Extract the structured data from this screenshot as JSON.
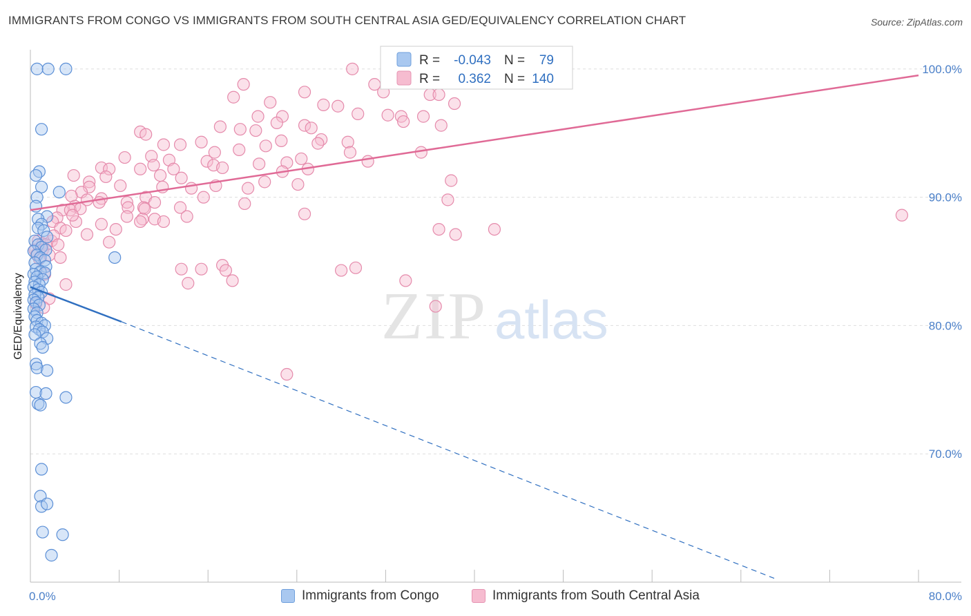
{
  "title": "IMMIGRANTS FROM CONGO VS IMMIGRANTS FROM SOUTH CENTRAL ASIA GED/EQUIVALENCY CORRELATION CHART",
  "source": "Source: ZipAtlas.com",
  "watermark": {
    "zip": "ZIP",
    "atlas": "atlas"
  },
  "colors": {
    "blue": "#2f6fc0",
    "blue_fill": "#a9c8f0",
    "pink": "#e06a96",
    "pink_fill": "#f6bcd0",
    "grid": "#dddddd"
  },
  "chart_data": {
    "type": "scatter",
    "xlabel": "",
    "ylabel": "GED/Equivalency",
    "xlim": [
      0,
      80
    ],
    "ylim": [
      60,
      101.5
    ],
    "x_tick_labels": [
      "0.0%",
      "80.0%"
    ],
    "y_ticks": [
      {
        "value": 100,
        "label": "100.0%"
      },
      {
        "value": 90,
        "label": "90.0%"
      },
      {
        "value": 80,
        "label": "80.0%"
      },
      {
        "value": 70,
        "label": "70.0%"
      }
    ],
    "legend": [
      {
        "series": "Immigrants from Congo",
        "r_label": "R =",
        "r": "-0.043",
        "n_label": "N =",
        "n": "79"
      },
      {
        "series": "Immigrants from South Central Asia",
        "r_label": "R =",
        "r": "0.362",
        "n_label": "N =",
        "n": "140"
      }
    ],
    "series": [
      {
        "name": "Immigrants from Congo",
        "color": "#2f6fc0",
        "trend": {
          "x0": 0,
          "y0": 83.0,
          "x1": 8.2,
          "y1": 80.3,
          "dash_x1": 67,
          "dash_y1": 60.3
        },
        "points": [
          [
            0.6,
            100
          ],
          [
            1.6,
            100
          ],
          [
            3.2,
            100
          ],
          [
            1.0,
            95.3
          ],
          [
            0.8,
            92.0
          ],
          [
            0.5,
            91.7
          ],
          [
            1.0,
            90.8
          ],
          [
            2.6,
            90.4
          ],
          [
            0.6,
            90.0
          ],
          [
            0.5,
            89.3
          ],
          [
            1.5,
            88.5
          ],
          [
            0.7,
            88.3
          ],
          [
            1.0,
            87.9
          ],
          [
            0.7,
            87.6
          ],
          [
            1.2,
            87.4
          ],
          [
            1.5,
            86.9
          ],
          [
            0.4,
            86.6
          ],
          [
            0.7,
            86.3
          ],
          [
            1.0,
            86.1
          ],
          [
            1.4,
            85.9
          ],
          [
            0.3,
            85.8
          ],
          [
            0.6,
            85.5
          ],
          [
            0.9,
            85.3
          ],
          [
            1.3,
            85.1
          ],
          [
            0.4,
            84.9
          ],
          [
            1.4,
            84.6
          ],
          [
            0.5,
            84.4
          ],
          [
            0.9,
            84.2
          ],
          [
            1.3,
            84.1
          ],
          [
            0.3,
            84.0
          ],
          [
            0.6,
            83.8
          ],
          [
            1.1,
            83.6
          ],
          [
            0.4,
            83.4
          ],
          [
            0.8,
            83.2
          ],
          [
            0.3,
            83.0
          ],
          [
            0.7,
            82.8
          ],
          [
            1.0,
            82.6
          ],
          [
            0.4,
            82.4
          ],
          [
            0.7,
            82.2
          ],
          [
            0.3,
            82.0
          ],
          [
            0.5,
            81.8
          ],
          [
            0.8,
            81.6
          ],
          [
            0.3,
            81.3
          ],
          [
            0.6,
            81.0
          ],
          [
            0.4,
            80.7
          ],
          [
            0.6,
            80.4
          ],
          [
            1.0,
            80.2
          ],
          [
            1.3,
            80.0
          ],
          [
            0.5,
            79.9
          ],
          [
            0.8,
            79.7
          ],
          [
            1.1,
            79.5
          ],
          [
            0.4,
            79.3
          ],
          [
            1.5,
            79.0
          ],
          [
            0.9,
            78.6
          ],
          [
            1.1,
            78.3
          ],
          [
            0.5,
            77.0
          ],
          [
            0.6,
            76.7
          ],
          [
            1.5,
            76.5
          ],
          [
            0.5,
            74.8
          ],
          [
            1.4,
            74.7
          ],
          [
            3.2,
            74.4
          ],
          [
            0.7,
            73.9
          ],
          [
            0.9,
            73.8
          ],
          [
            7.6,
            85.3
          ],
          [
            1.0,
            68.8
          ],
          [
            0.9,
            66.7
          ],
          [
            1.0,
            65.9
          ],
          [
            1.5,
            66.1
          ],
          [
            1.1,
            63.9
          ],
          [
            2.9,
            63.7
          ],
          [
            1.9,
            62.1
          ]
        ]
      },
      {
        "name": "Immigrants from South Central Asia",
        "color": "#e06a96",
        "trend": {
          "x0": 0,
          "y0": 89.0,
          "x1": 80,
          "y1": 99.5
        },
        "points": [
          [
            29.0,
            100
          ],
          [
            31.0,
            98.8
          ],
          [
            31.8,
            98.2
          ],
          [
            36.0,
            98.0
          ],
          [
            36.8,
            98.0
          ],
          [
            38.2,
            97.3
          ],
          [
            19.2,
            98.8
          ],
          [
            24.7,
            98.2
          ],
          [
            18.3,
            97.8
          ],
          [
            21.6,
            97.4
          ],
          [
            26.4,
            97.2
          ],
          [
            27.7,
            97.1
          ],
          [
            20.5,
            96.3
          ],
          [
            22.7,
            96.3
          ],
          [
            29.5,
            96.5
          ],
          [
            32.2,
            96.4
          ],
          [
            33.4,
            96.3
          ],
          [
            35.4,
            96.3
          ],
          [
            33.6,
            95.9
          ],
          [
            22.2,
            95.8
          ],
          [
            37.0,
            95.6
          ],
          [
            24.7,
            95.6
          ],
          [
            25.3,
            95.4
          ],
          [
            17.1,
            95.5
          ],
          [
            18.9,
            95.3
          ],
          [
            20.3,
            95.2
          ],
          [
            9.9,
            95.1
          ],
          [
            10.4,
            94.9
          ],
          [
            26.2,
            94.5
          ],
          [
            22.6,
            94.4
          ],
          [
            12.0,
            94.1
          ],
          [
            15.4,
            94.3
          ],
          [
            28.6,
            94.3
          ],
          [
            25.9,
            94.2
          ],
          [
            21.2,
            94.0
          ],
          [
            13.5,
            94.1
          ],
          [
            18.8,
            93.7
          ],
          [
            28.8,
            93.5
          ],
          [
            16.6,
            93.5
          ],
          [
            35.2,
            93.5
          ],
          [
            8.5,
            93.1
          ],
          [
            10.9,
            93.2
          ],
          [
            12.5,
            92.9
          ],
          [
            24.4,
            93.0
          ],
          [
            15.9,
            92.8
          ],
          [
            23.1,
            92.7
          ],
          [
            16.5,
            92.5
          ],
          [
            20.6,
            92.6
          ],
          [
            11.1,
            92.5
          ],
          [
            30.4,
            92.8
          ],
          [
            6.4,
            92.3
          ],
          [
            9.9,
            92.2
          ],
          [
            12.9,
            92.2
          ],
          [
            7.1,
            92.2
          ],
          [
            17.3,
            92.3
          ],
          [
            25.0,
            92.2
          ],
          [
            22.7,
            92.0
          ],
          [
            11.7,
            91.7
          ],
          [
            3.9,
            91.7
          ],
          [
            6.8,
            91.6
          ],
          [
            13.6,
            91.5
          ],
          [
            37.9,
            91.3
          ],
          [
            5.3,
            91.2
          ],
          [
            21.1,
            91.2
          ],
          [
            16.7,
            90.9
          ],
          [
            8.1,
            90.9
          ],
          [
            11.9,
            90.8
          ],
          [
            24.1,
            91.0
          ],
          [
            5.3,
            90.8
          ],
          [
            19.6,
            90.7
          ],
          [
            14.5,
            90.7
          ],
          [
            4.6,
            90.4
          ],
          [
            3.7,
            90.1
          ],
          [
            10.4,
            90.0
          ],
          [
            15.6,
            90.0
          ],
          [
            6.4,
            89.9
          ],
          [
            5.1,
            89.8
          ],
          [
            6.2,
            89.6
          ],
          [
            8.7,
            89.6
          ],
          [
            11.2,
            89.6
          ],
          [
            8.8,
            89.2
          ],
          [
            4.0,
            89.3
          ],
          [
            10.2,
            89.2
          ],
          [
            13.5,
            89.2
          ],
          [
            2.9,
            89.0
          ],
          [
            3.6,
            89.0
          ],
          [
            4.5,
            89.1
          ],
          [
            37.6,
            89.8
          ],
          [
            19.3,
            89.5
          ],
          [
            10.3,
            89.1
          ],
          [
            8.7,
            88.5
          ],
          [
            10.1,
            88.3
          ],
          [
            11.2,
            88.3
          ],
          [
            12.0,
            88.1
          ],
          [
            9.9,
            88.1
          ],
          [
            4.1,
            88.1
          ],
          [
            2.4,
            88.4
          ],
          [
            3.8,
            88.6
          ],
          [
            2.0,
            88.1
          ],
          [
            24.7,
            88.7
          ],
          [
            78.5,
            88.6
          ],
          [
            6.4,
            87.9
          ],
          [
            7.7,
            87.5
          ],
          [
            14.1,
            88.5
          ],
          [
            2.7,
            87.6
          ],
          [
            3.2,
            87.4
          ],
          [
            36.8,
            87.5
          ],
          [
            38.3,
            87.1
          ],
          [
            41.8,
            87.5
          ],
          [
            5.1,
            87.1
          ],
          [
            0.7,
            86.6
          ],
          [
            1.1,
            86.4
          ],
          [
            1.9,
            86.6
          ],
          [
            2.1,
            87.0
          ],
          [
            1.4,
            86.3
          ],
          [
            0.4,
            85.9
          ],
          [
            7.1,
            86.5
          ],
          [
            2.5,
            86.3
          ],
          [
            1.1,
            85.9
          ],
          [
            1.7,
            85.5
          ],
          [
            2.7,
            85.3
          ],
          [
            0.8,
            85.2
          ],
          [
            3.2,
            83.2
          ],
          [
            15.4,
            84.4
          ],
          [
            17.3,
            84.7
          ],
          [
            17.6,
            84.3
          ],
          [
            13.6,
            84.4
          ],
          [
            18.2,
            83.5
          ],
          [
            14.2,
            83.3
          ],
          [
            29.3,
            84.5
          ],
          [
            28.0,
            84.3
          ],
          [
            33.8,
            83.5
          ],
          [
            36.5,
            81.5
          ],
          [
            23.1,
            76.2
          ],
          [
            1.3,
            84.0
          ],
          [
            1.7,
            82.1
          ],
          [
            0.5,
            81.7
          ],
          [
            1.2,
            81.4
          ],
          [
            0.6,
            85.6
          ]
        ]
      }
    ]
  },
  "bottom_legend": [
    "Immigrants from Congo",
    "Immigrants from South Central Asia"
  ]
}
